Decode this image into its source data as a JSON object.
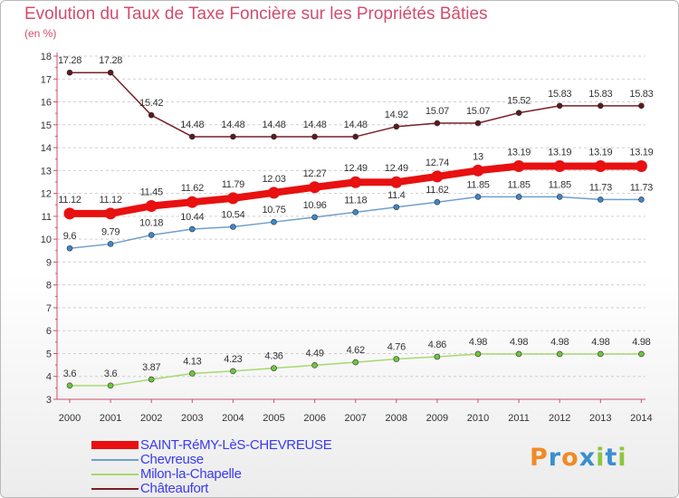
{
  "title": "Evolution du Taux de Taxe Foncière sur les Propriétés Bâties",
  "unit_label": "(en %)",
  "logo": {
    "text": "Proxiti",
    "colors": [
      "#f08a24",
      "#3a8fd0",
      "#f08a24",
      "#3a8fd0",
      "#8cc63f",
      "#3a8fd0",
      "#8cc63f"
    ]
  },
  "chart_data": {
    "type": "line",
    "x": [
      "2000",
      "2001",
      "2002",
      "2003",
      "2004",
      "2005",
      "2006",
      "2007",
      "2008",
      "2009",
      "2010",
      "2011",
      "2012",
      "2013",
      "2014"
    ],
    "ylim": [
      3,
      18
    ],
    "yticks": [
      "3",
      "4",
      "5",
      "6",
      "7",
      "8",
      "9",
      "10",
      "11",
      "12",
      "13",
      "14",
      "15",
      "16",
      "17",
      "18"
    ],
    "grid": "horizontal dashed",
    "legend_position": "bottom-left",
    "series": [
      {
        "name": "Châteaufort",
        "color": "#7a1f28",
        "marker": "#5a1a1f",
        "width": 1.5,
        "values": [
          17.28,
          17.28,
          15.42,
          14.48,
          14.48,
          14.48,
          14.48,
          14.48,
          14.92,
          15.07,
          15.07,
          15.52,
          15.83,
          15.83,
          15.83
        ],
        "labels": [
          "17.28",
          "17.28",
          "15.42",
          "14.48",
          "14.48",
          "14.48",
          "14.48",
          "14.48",
          "14.92",
          "15.07",
          "15.07",
          "15.52",
          "15.83",
          "15.83",
          "15.83"
        ]
      },
      {
        "name": "Chevreuse",
        "color": "#6fa0cc",
        "marker": "#3f86c8",
        "width": 1.5,
        "values": [
          9.6,
          9.79,
          10.18,
          10.44,
          10.54,
          10.75,
          10.96,
          11.18,
          11.4,
          11.62,
          11.85,
          11.85,
          11.85,
          11.73,
          11.73
        ],
        "labels": [
          "9.6",
          "9.79",
          "10.18",
          "10.44",
          "10.54",
          "10.75",
          "10.96",
          "11.18",
          "11.4",
          "11.62",
          "11.85",
          "11.85",
          "11.85",
          "11.73",
          "11.73"
        ]
      },
      {
        "name": "Milon-la-Chapelle",
        "color": "#a8d870",
        "marker": "#6cc73c",
        "width": 1.5,
        "values": [
          3.6,
          3.6,
          3.87,
          4.13,
          4.23,
          4.36,
          4.49,
          4.62,
          4.76,
          4.86,
          4.98,
          4.98,
          4.98,
          4.98,
          4.98
        ],
        "labels": [
          "3.6",
          "3.6",
          "3.87",
          "4.13",
          "4.23",
          "4.36",
          "4.49",
          "4.62",
          "4.76",
          "4.86",
          "4.98",
          "4.98",
          "4.98",
          "4.98",
          "4.98"
        ]
      },
      {
        "name": "SAINT-RéMY-LèS-CHEVREUSE",
        "color": "#e81010",
        "marker": "#e81010",
        "width": 8,
        "values": [
          11.12,
          11.12,
          11.45,
          11.62,
          11.79,
          12.03,
          12.27,
          12.49,
          12.49,
          12.74,
          13,
          13.19,
          13.19,
          13.19,
          13.19
        ],
        "labels": [
          "11.12",
          "11.12",
          "11.45",
          "11.62",
          "11.79",
          "12.03",
          "12.27",
          "12.49",
          "12.49",
          "12.74",
          "13",
          "13.19",
          "13.19",
          "13.19",
          "13.19"
        ]
      }
    ],
    "legend": [
      {
        "name": "SAINT-RéMY-LèS-CHEVREUSE",
        "color": "#e81010",
        "text_color": "#3a3af0",
        "thick": true
      },
      {
        "name": "Chevreuse",
        "color": "#6fa0cc",
        "text_color": "#3a3af0",
        "thick": false
      },
      {
        "name": "Milon-la-Chapelle",
        "color": "#a8d870",
        "text_color": "#3a3af0",
        "thick": false
      },
      {
        "name": "Châteaufort",
        "color": "#7a1f28",
        "text_color": "#3a3af0",
        "thick": false
      }
    ]
  }
}
